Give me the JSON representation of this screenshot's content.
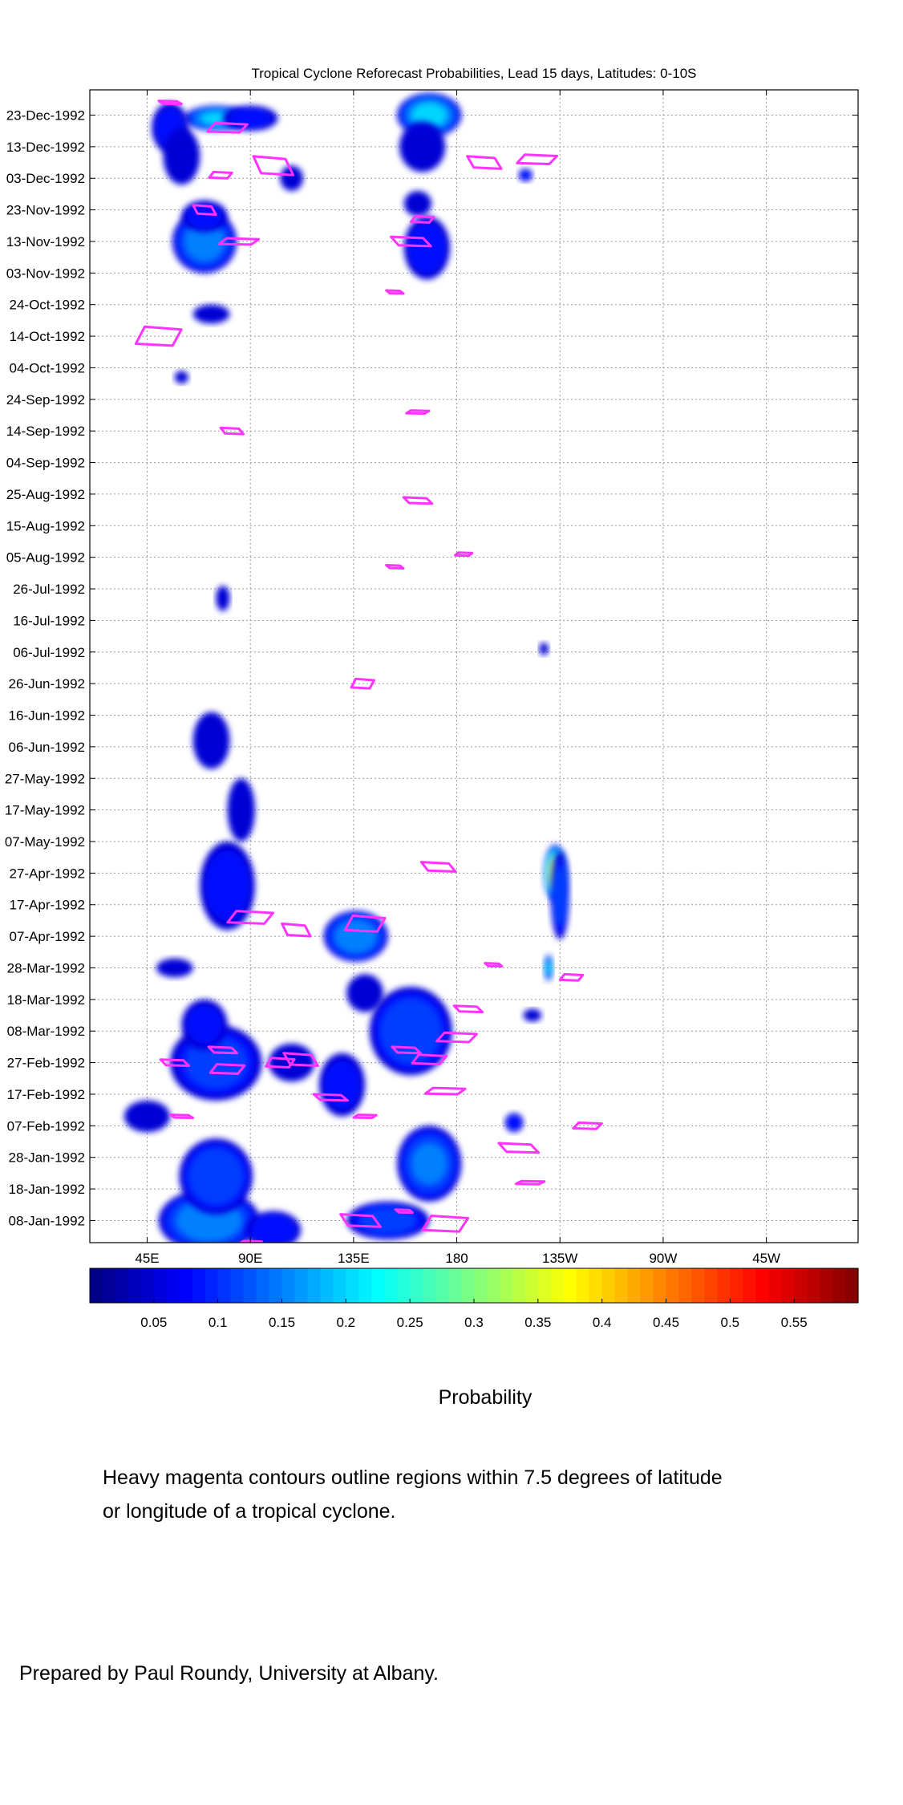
{
  "chart_data": {
    "type": "heatmap",
    "title": "Tropical Cyclone Reforecast Probabilities, Lead 15 days, Latitudes: 0-10S",
    "colorbar_label": "Probability",
    "x_axis": {
      "ticks": [
        {
          "label": "45E",
          "lon": 45
        },
        {
          "label": "90E",
          "lon": 90
        },
        {
          "label": "135E",
          "lon": 135
        },
        {
          "label": "180",
          "lon": 180
        },
        {
          "label": "135W",
          "lon": 225
        },
        {
          "label": "90W",
          "lon": 270
        },
        {
          "label": "45W",
          "lon": 315
        }
      ],
      "range": [
        20,
        355
      ]
    },
    "y_axis": {
      "ticks": [
        "23-Dec-1992",
        "13-Dec-1992",
        "03-Dec-1992",
        "23-Nov-1992",
        "13-Nov-1992",
        "03-Nov-1992",
        "24-Oct-1992",
        "14-Oct-1992",
        "04-Oct-1992",
        "24-Sep-1992",
        "14-Sep-1992",
        "04-Sep-1992",
        "25-Aug-1992",
        "15-Aug-1992",
        "05-Aug-1992",
        "26-Jul-1992",
        "16-Jul-1992",
        "06-Jul-1992",
        "26-Jun-1992",
        "16-Jun-1992",
        "06-Jun-1992",
        "27-May-1992",
        "17-May-1992",
        "07-May-1992",
        "27-Apr-1992",
        "17-Apr-1992",
        "07-Apr-1992",
        "28-Mar-1992",
        "18-Mar-1992",
        "08-Mar-1992",
        "27-Feb-1992",
        "17-Feb-1992",
        "07-Feb-1992",
        "28-Jan-1992",
        "18-Jan-1992",
        "08-Jan-1992"
      ],
      "range": [
        "01-Jan-1992",
        "31-Dec-1992"
      ]
    },
    "grid": true,
    "colorbar": {
      "ticks": [
        "0.05",
        "0.1",
        "0.15",
        "0.2",
        "0.25",
        "0.3",
        "0.35",
        "0.4",
        "0.45",
        "0.5",
        "0.55"
      ],
      "range": [
        0,
        0.6
      ],
      "colormap": "jet"
    },
    "contour_color": "#ff33ff",
    "blobs": [
      {
        "lon": 75,
        "date": "22-Dec-1992",
        "dlon": 14,
        "ddays": 4,
        "p": 0.2
      },
      {
        "lon": 55,
        "date": "19-Dec-1992",
        "dlon": 8,
        "ddays": 8,
        "p": 0.08
      },
      {
        "lon": 90,
        "date": "22-Dec-1992",
        "dlon": 12,
        "ddays": 4,
        "p": 0.08
      },
      {
        "lon": 60,
        "date": "10-Dec-1992",
        "dlon": 8,
        "ddays": 9,
        "p": 0.06
      },
      {
        "lon": 70,
        "date": "13-Nov-1992",
        "dlon": 14,
        "ddays": 10,
        "p": 0.17
      },
      {
        "lon": 70,
        "date": "21-Nov-1992",
        "dlon": 10,
        "ddays": 5,
        "p": 0.08
      },
      {
        "lon": 168,
        "date": "23-Dec-1992",
        "dlon": 14,
        "ddays": 7,
        "p": 0.22
      },
      {
        "lon": 165,
        "date": "13-Dec-1992",
        "dlon": 10,
        "ddays": 8,
        "p": 0.07
      },
      {
        "lon": 167,
        "date": "11-Nov-1992",
        "dlon": 10,
        "ddays": 10,
        "p": 0.09
      },
      {
        "lon": 163,
        "date": "25-Nov-1992",
        "dlon": 6,
        "ddays": 4,
        "p": 0.06
      },
      {
        "lon": 108,
        "date": "03-Dec-1992",
        "dlon": 5,
        "ddays": 4,
        "p": 0.06
      },
      {
        "lon": 210,
        "date": "04-Dec-1992",
        "dlon": 3,
        "ddays": 2,
        "p": 0.1
      },
      {
        "lon": 73,
        "date": "21-Oct-1992",
        "dlon": 8,
        "ddays": 3,
        "p": 0.07
      },
      {
        "lon": 60,
        "date": "01-Oct-1992",
        "dlon": 3,
        "ddays": 2,
        "p": 0.06
      },
      {
        "lon": 78,
        "date": "23-Jul-1992",
        "dlon": 3,
        "ddays": 4,
        "p": 0.06
      },
      {
        "lon": 73,
        "date": "08-Jun-1992",
        "dlon": 8,
        "ddays": 9,
        "p": 0.07
      },
      {
        "lon": 86,
        "date": "17-May-1992",
        "dlon": 6,
        "ddays": 10,
        "p": 0.06
      },
      {
        "lon": 80,
        "date": "23-Apr-1992",
        "dlon": 12,
        "ddays": 14,
        "p": 0.09
      },
      {
        "lon": 136,
        "date": "07-Apr-1992",
        "dlon": 14,
        "ddays": 8,
        "p": 0.18
      },
      {
        "lon": 223,
        "date": "27-Apr-1992",
        "dlon": 5,
        "ddays": 9,
        "p": 0.38
      },
      {
        "lon": 225,
        "date": "20-Apr-1992",
        "dlon": 4,
        "ddays": 14,
        "p": 0.12
      },
      {
        "lon": 220,
        "date": "28-Mar-1992",
        "dlon": 2,
        "ddays": 4,
        "p": 0.2
      },
      {
        "lon": 57,
        "date": "28-Mar-1992",
        "dlon": 8,
        "ddays": 3,
        "p": 0.07
      },
      {
        "lon": 160,
        "date": "08-Mar-1992",
        "dlon": 18,
        "ddays": 14,
        "p": 0.14
      },
      {
        "lon": 140,
        "date": "20-Mar-1992",
        "dlon": 8,
        "ddays": 6,
        "p": 0.07
      },
      {
        "lon": 75,
        "date": "27-Feb-1992",
        "dlon": 20,
        "ddays": 12,
        "p": 0.12
      },
      {
        "lon": 70,
        "date": "10-Mar-1992",
        "dlon": 10,
        "ddays": 8,
        "p": 0.08
      },
      {
        "lon": 130,
        "date": "20-Feb-1992",
        "dlon": 10,
        "ddays": 10,
        "p": 0.08
      },
      {
        "lon": 108,
        "date": "27-Feb-1992",
        "dlon": 10,
        "ddays": 6,
        "p": 0.07
      },
      {
        "lon": 72,
        "date": "08-Jan-1992",
        "dlon": 22,
        "ddays": 10,
        "p": 0.18
      },
      {
        "lon": 75,
        "date": "22-Jan-1992",
        "dlon": 16,
        "ddays": 12,
        "p": 0.14
      },
      {
        "lon": 100,
        "date": "05-Jan-1992",
        "dlon": 12,
        "ddays": 6,
        "p": 0.1
      },
      {
        "lon": 45,
        "date": "10-Feb-1992",
        "dlon": 10,
        "ddays": 5,
        "p": 0.07
      },
      {
        "lon": 168,
        "date": "26-Jan-1992",
        "dlon": 14,
        "ddays": 12,
        "p": 0.15
      },
      {
        "lon": 150,
        "date": "08-Jan-1992",
        "dlon": 18,
        "ddays": 6,
        "p": 0.12
      },
      {
        "lon": 205,
        "date": "08-Feb-1992",
        "dlon": 4,
        "ddays": 3,
        "p": 0.1
      },
      {
        "lon": 213,
        "date": "13-Mar-1992",
        "dlon": 4,
        "ddays": 2,
        "p": 0.07
      },
      {
        "lon": 218,
        "date": "07-Jul-1992",
        "dlon": 2,
        "ddays": 2,
        "p": 0.06
      }
    ],
    "tc_contours": [
      {
        "lon": 55,
        "date": "27-Dec-1992",
        "dlon": 8,
        "ddays": 1
      },
      {
        "lon": 80,
        "date": "19-Dec-1992",
        "dlon": 14,
        "ddays": 3
      },
      {
        "lon": 100,
        "date": "07-Dec-1992",
        "dlon": 14,
        "ddays": 6
      },
      {
        "lon": 77,
        "date": "04-Dec-1992",
        "dlon": 8,
        "ddays": 2
      },
      {
        "lon": 70,
        "date": "23-Nov-1992",
        "dlon": 8,
        "ddays": 3
      },
      {
        "lon": 85,
        "date": "13-Nov-1992",
        "dlon": 14,
        "ddays": 2
      },
      {
        "lon": 192,
        "date": "08-Dec-1992",
        "dlon": 12,
        "ddays": 4
      },
      {
        "lon": 215,
        "date": "09-Dec-1992",
        "dlon": 14,
        "ddays": 3
      },
      {
        "lon": 160,
        "date": "13-Nov-1992",
        "dlon": 14,
        "ddays": 3
      },
      {
        "lon": 165,
        "date": "20-Nov-1992",
        "dlon": 8,
        "ddays": 2
      },
      {
        "lon": 153,
        "date": "28-Oct-1992",
        "dlon": 6,
        "ddays": 1
      },
      {
        "lon": 50,
        "date": "14-Oct-1992",
        "dlon": 16,
        "ddays": 6
      },
      {
        "lon": 82,
        "date": "14-Sep-1992",
        "dlon": 8,
        "ddays": 2
      },
      {
        "lon": 163,
        "date": "20-Sep-1992",
        "dlon": 8,
        "ddays": 1
      },
      {
        "lon": 163,
        "date": "23-Aug-1992",
        "dlon": 10,
        "ddays": 2
      },
      {
        "lon": 183,
        "date": "06-Aug-1992",
        "dlon": 6,
        "ddays": 1
      },
      {
        "lon": 153,
        "date": "02-Aug-1992",
        "dlon": 6,
        "ddays": 1
      },
      {
        "lon": 139,
        "date": "26-Jun-1992",
        "dlon": 8,
        "ddays": 3
      },
      {
        "lon": 172,
        "date": "29-Apr-1992",
        "dlon": 12,
        "ddays": 3
      },
      {
        "lon": 90,
        "date": "13-Apr-1992",
        "dlon": 16,
        "ddays": 4
      },
      {
        "lon": 110,
        "date": "09-Apr-1992",
        "dlon": 10,
        "ddays": 4
      },
      {
        "lon": 140,
        "date": "11-Apr-1992",
        "dlon": 14,
        "ddays": 5
      },
      {
        "lon": 196,
        "date": "29-Mar-1992",
        "dlon": 6,
        "ddays": 1
      },
      {
        "lon": 230,
        "date": "25-Mar-1992",
        "dlon": 8,
        "ddays": 2
      },
      {
        "lon": 185,
        "date": "15-Mar-1992",
        "dlon": 10,
        "ddays": 2
      },
      {
        "lon": 180,
        "date": "06-Mar-1992",
        "dlon": 14,
        "ddays": 3
      },
      {
        "lon": 158,
        "date": "02-Mar-1992",
        "dlon": 10,
        "ddays": 2
      },
      {
        "lon": 168,
        "date": "28-Feb-1992",
        "dlon": 12,
        "ddays": 3
      },
      {
        "lon": 78,
        "date": "02-Mar-1992",
        "dlon": 10,
        "ddays": 2
      },
      {
        "lon": 80,
        "date": "25-Feb-1992",
        "dlon": 12,
        "ddays": 3
      },
      {
        "lon": 57,
        "date": "27-Feb-1992",
        "dlon": 10,
        "ddays": 2
      },
      {
        "lon": 103,
        "date": "27-Feb-1992",
        "dlon": 10,
        "ddays": 3
      },
      {
        "lon": 112,
        "date": "28-Feb-1992",
        "dlon": 12,
        "ddays": 4
      },
      {
        "lon": 175,
        "date": "18-Feb-1992",
        "dlon": 14,
        "ddays": 2
      },
      {
        "lon": 125,
        "date": "16-Feb-1992",
        "dlon": 12,
        "ddays": 2
      },
      {
        "lon": 140,
        "date": "10-Feb-1992",
        "dlon": 8,
        "ddays": 1
      },
      {
        "lon": 60,
        "date": "10-Feb-1992",
        "dlon": 8,
        "ddays": 1
      },
      {
        "lon": 237,
        "date": "07-Feb-1992",
        "dlon": 10,
        "ddays": 2
      },
      {
        "lon": 207,
        "date": "31-Jan-1992",
        "dlon": 14,
        "ddays": 3
      },
      {
        "lon": 212,
        "date": "20-Jan-1992",
        "dlon": 10,
        "ddays": 1
      },
      {
        "lon": 138,
        "date": "08-Jan-1992",
        "dlon": 14,
        "ddays": 4
      },
      {
        "lon": 175,
        "date": "07-Jan-1992",
        "dlon": 16,
        "ddays": 5
      },
      {
        "lon": 157,
        "date": "11-Jan-1992",
        "dlon": 6,
        "ddays": 1
      },
      {
        "lon": 90,
        "date": "01-Jan-1992",
        "dlon": 8,
        "ddays": 1
      }
    ]
  },
  "notes": {
    "line1": "Heavy magenta contours outline regions within 7.5 degrees of latitude",
    "line2": "or longitude of a tropical cyclone.",
    "credit": "Prepared by Paul Roundy, University at Albany."
  }
}
